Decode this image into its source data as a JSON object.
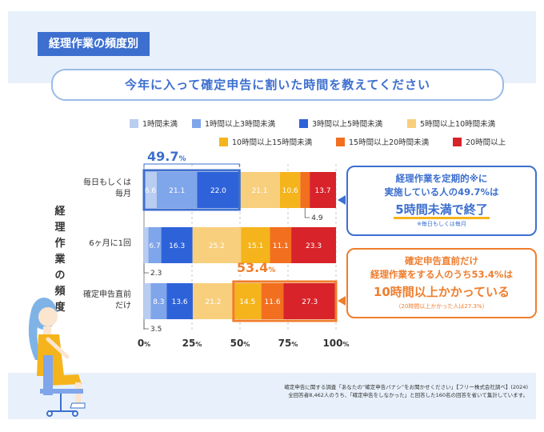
{
  "header": {
    "tag": "経理作業の頻度別",
    "question": "今年に入って確定申告に割いた時間を教えてください"
  },
  "vertical_label": "経理作業の頻度",
  "colors": {
    "panel": "#e8f1fb",
    "accent_blue": "#3d6fcf",
    "accent_orange": "#ef7e2e"
  },
  "chart_data": {
    "type": "bar",
    "orientation": "horizontal",
    "stacked": true,
    "categories": [
      "毎日もしくは\n毎月",
      "6ヶ月に1回",
      "確定申告直前\nだけ"
    ],
    "xlim": [
      0,
      100
    ],
    "x_ticks": [
      "0%",
      "25%",
      "50%",
      "75%",
      "100%"
    ],
    "series": [
      {
        "name": "1時間未満",
        "color": "#b8cdf0",
        "values": [
          6.6,
          2.3,
          3.5
        ]
      },
      {
        "name": "1時間以上3時間未満",
        "color": "#7fa5ea",
        "values": [
          21.1,
          6.7,
          8.3
        ]
      },
      {
        "name": "3時間以上5時間未満",
        "color": "#2e62d9",
        "values": [
          22.0,
          16.3,
          13.6
        ]
      },
      {
        "name": "5時間以上10時間未満",
        "color": "#f8cf7c",
        "values": [
          21.1,
          25.2,
          21.2
        ]
      },
      {
        "name": "10時間以上15時間未満",
        "color": "#f5b41c",
        "values": [
          10.6,
          15.1,
          14.5
        ]
      },
      {
        "name": "15時間以上20時間未満",
        "color": "#f16f1f",
        "values": [
          4.9,
          11.1,
          11.6
        ]
      },
      {
        "name": "20時間以上",
        "color": "#d8232a",
        "values": [
          13.7,
          23.3,
          27.3
        ]
      }
    ],
    "annotations": [
      {
        "label": "49.7",
        "unit": "%",
        "row": 0,
        "from": 0,
        "to": 49.7
      },
      {
        "label": "53.4",
        "unit": "%",
        "row": 2,
        "from": 46.6,
        "to": 100
      }
    ]
  },
  "callouts": {
    "blue": {
      "line1": "経理作業を定期的※に",
      "line2": "実施している人の49.7%は",
      "line3": "5時間未満で終了",
      "note": "※毎日もしくは毎月"
    },
    "orange": {
      "line1": "確定申告直前だけ",
      "line2": "経理作業をする人のうち53.4%は",
      "line3": "10時間以上かかっている",
      "note": "（20時間以上かかった人は27.3%）"
    }
  },
  "footnote": {
    "line1": "確定申告に関する調査「あなたの“確定申告バナシ”をお聞かせください」【フリー株式会社調べ】(2024)",
    "line2": "全回答者8,462人のうち、「確定申告をしなかった」と回答した160名の回答を省いて集計しています。"
  }
}
